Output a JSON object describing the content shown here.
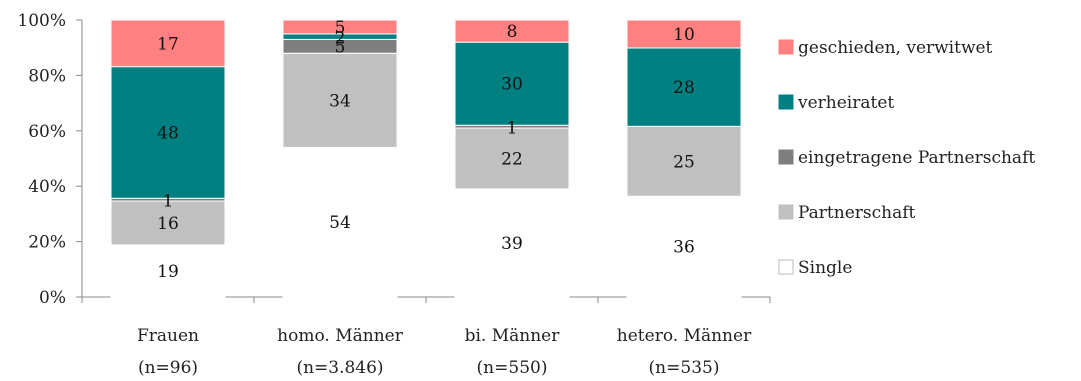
{
  "chart_data": {
    "type": "bar",
    "stacked": true,
    "percent": true,
    "categories": [
      [
        "Frauen",
        "(n=96)"
      ],
      [
        "homo. Männer",
        "(n=3.846)"
      ],
      [
        "bi. Männer",
        "(n=550)"
      ],
      [
        "hetero. Männer",
        "(n=535)"
      ]
    ],
    "series": [
      {
        "name": "Single",
        "color": "#ffffff",
        "values": [
          19,
          54,
          39,
          36
        ]
      },
      {
        "name": "Partnerschaft",
        "color": "#c0c0c0",
        "values": [
          16,
          34,
          22,
          25
        ]
      },
      {
        "name": "eingetragene Partnerschaft",
        "color": "#7f7f7f",
        "values": [
          1,
          5,
          1,
          0
        ]
      },
      {
        "name": "verheiratet",
        "color": "#008080",
        "values": [
          48,
          2,
          30,
          28
        ]
      },
      {
        "name": "geschieden, verwitwet",
        "color": "#ff8080",
        "values": [
          17,
          5,
          8,
          10
        ]
      }
    ],
    "data_labels": [
      [
        "19",
        "16",
        "1",
        "48",
        "17"
      ],
      [
        "54",
        "34",
        "5",
        "2",
        "5"
      ],
      [
        "39",
        "22",
        "1",
        "30",
        "8"
      ],
      [
        "36",
        "25",
        "",
        "28",
        "10"
      ]
    ],
    "y_ticks": [
      "0%",
      "20%",
      "40%",
      "60%",
      "80%",
      "100%"
    ],
    "ylim": [
      0,
      100
    ],
    "legend_position": "right",
    "legend_order": [
      "geschieden, verwitwet",
      "verheiratet",
      "eingetragene Partnerschaft",
      "Partnerschaft",
      "Single"
    ]
  }
}
